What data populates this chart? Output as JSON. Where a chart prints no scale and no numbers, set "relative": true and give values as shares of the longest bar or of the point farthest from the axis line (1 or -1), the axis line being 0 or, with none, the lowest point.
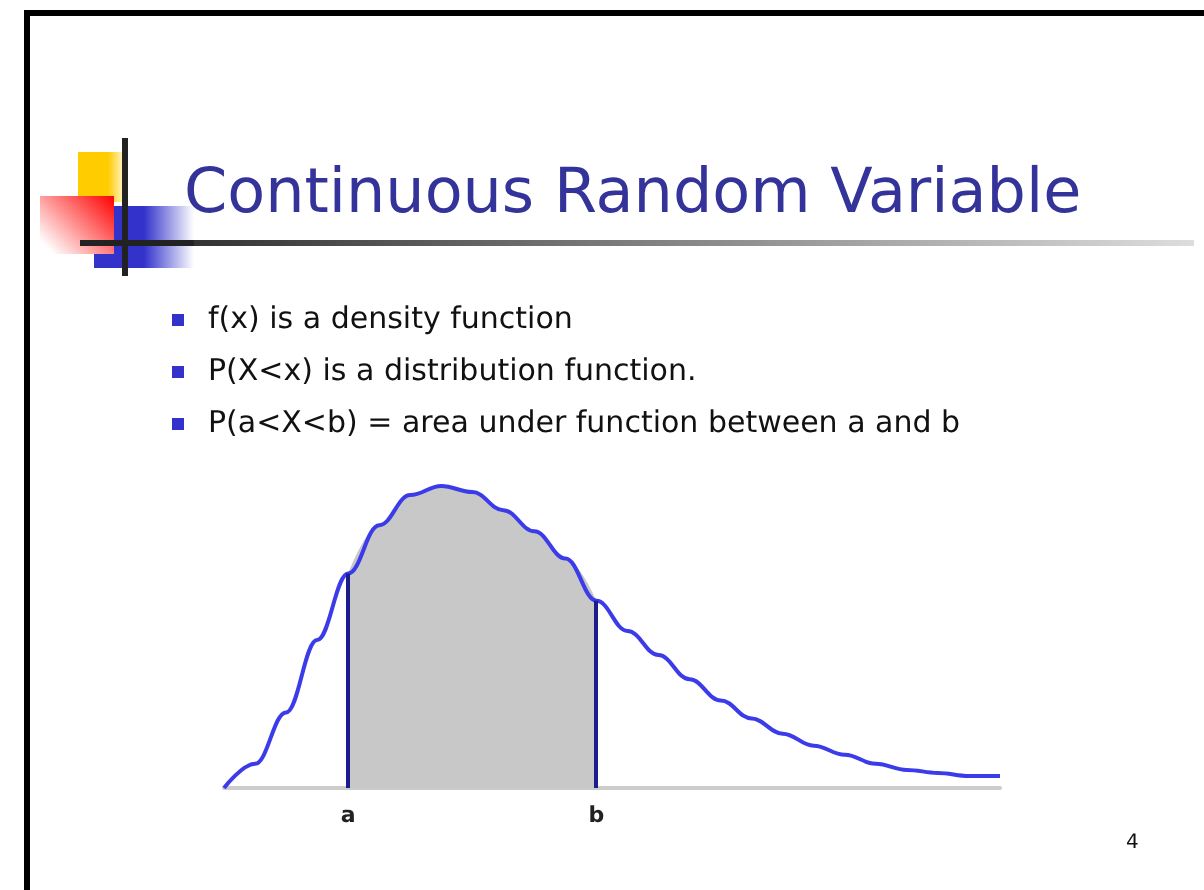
{
  "chart_data": {
    "type": "line",
    "title": "Continuous Random Variable",
    "annotations": [
      "f(x) is a density function",
      "P(X<x) is a distribution function.",
      "P(a<X<b) = area under function between a and b",
      "4"
    ],
    "categories": [
      null,
      null,
      null,
      null,
      "a",
      null,
      null,
      null,
      null,
      null,
      null,
      null,
      "b",
      null,
      null,
      null,
      null,
      null,
      null,
      null,
      null,
      null,
      null,
      null,
      null,
      null
    ],
    "relative": true,
    "grid": false,
    "marker": "none",
    "series": [
      {
        "type": "area",
        "color": "#c8c8c8",
        "values": [
          null,
          null,
          null,
          null,
          0.71,
          0.87,
          0.97,
          1.0,
          0.98,
          0.92,
          0.85,
          0.76,
          0.62,
          null,
          null,
          null,
          null,
          null,
          null,
          null,
          null,
          null,
          null,
          null,
          null,
          null
        ]
      },
      {
        "color": "#3b3bea",
        "values": [
          0,
          0.08,
          0.25,
          0.49,
          0.71,
          0.87,
          0.97,
          1.0,
          0.98,
          0.92,
          0.85,
          0.76,
          0.62,
          0.52,
          0.44,
          0.36,
          0.29,
          0.23,
          0.18,
          0.14,
          0.11,
          0.08,
          0.06,
          0.05,
          0.04,
          0.04
        ]
      }
    ]
  }
}
